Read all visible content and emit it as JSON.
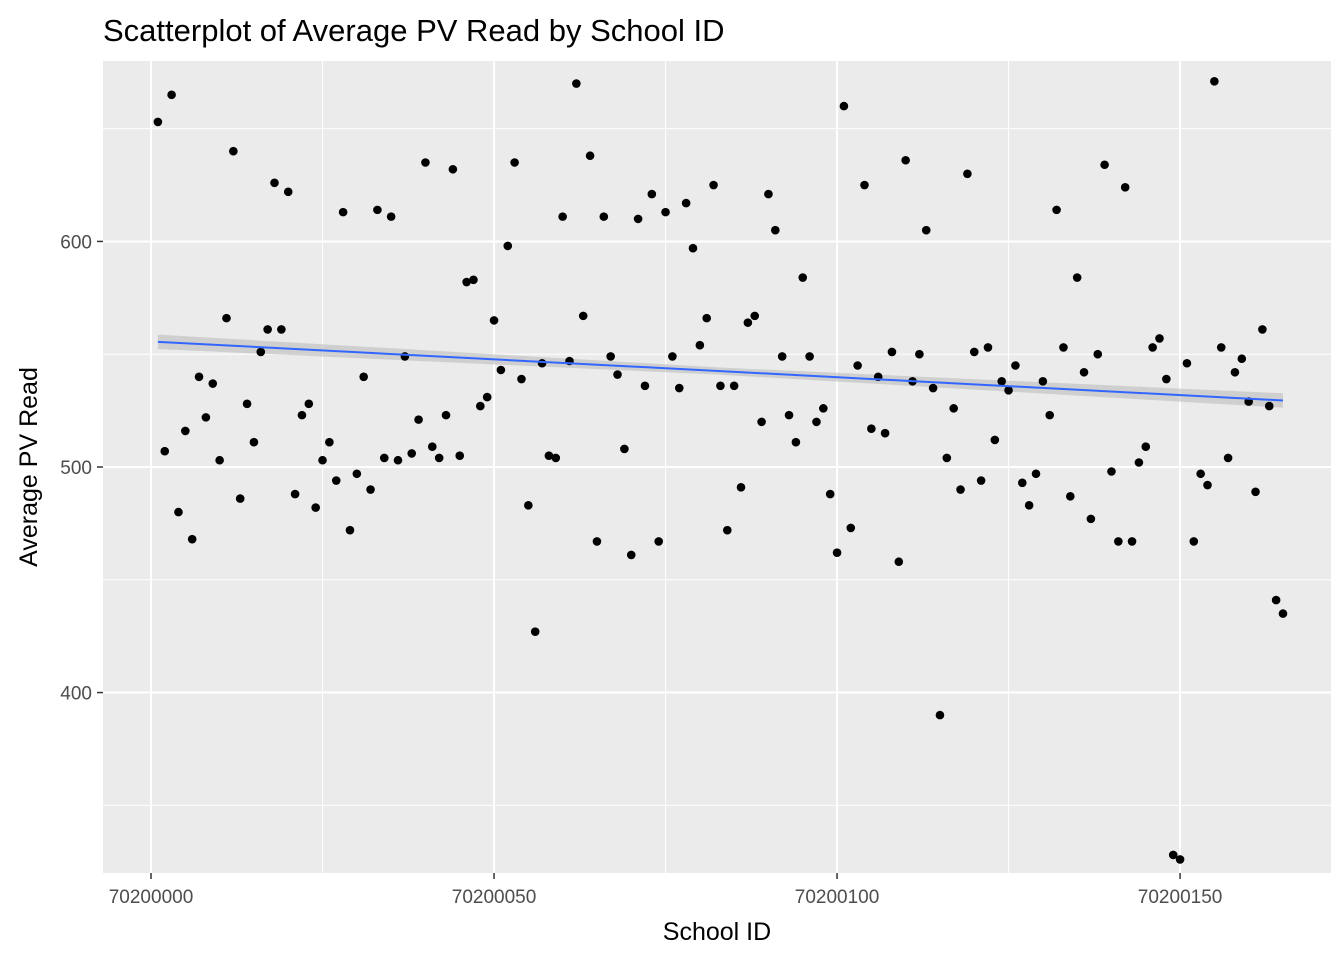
{
  "chart_data": {
    "type": "scatter",
    "title": "Scatterplot of Average PV Read by School ID",
    "xlabel": "School ID",
    "ylabel": "Average PV Read",
    "xlim": [
      70199993,
      70200172
    ],
    "ylim": [
      320,
      680
    ],
    "x_ticks": [
      70200000,
      70200050,
      70200100,
      70200150
    ],
    "x_tick_labels": [
      "70200000",
      "70200050",
      "70200100",
      "70200150"
    ],
    "y_ticks": [
      400,
      500,
      600
    ],
    "y_tick_labels": [
      "400",
      "500",
      "600"
    ],
    "grid": true,
    "panel_background": "#ebebeb",
    "point_color": "#000000",
    "trend_line": {
      "method": "lm",
      "color": "#3366ff",
      "ribbon_color": "#bdbdbd",
      "x": [
        70200001,
        70200165
      ],
      "y": [
        555.5,
        529.5
      ],
      "se_halfwidth": [
        3.2,
        3.2
      ]
    },
    "series": [
      {
        "x": [
          70200001,
          70200002,
          70200003,
          70200004,
          70200005,
          70200006,
          70200007,
          70200008,
          70200009,
          70200010,
          70200011,
          70200012,
          70200013,
          70200014,
          70200015,
          70200016,
          70200017,
          70200018,
          70200019,
          70200020,
          70200021,
          70200022,
          70200023,
          70200024,
          70200025,
          70200026,
          70200027,
          70200028,
          70200029,
          70200030,
          70200031,
          70200032,
          70200033,
          70200034,
          70200035,
          70200036,
          70200037,
          70200038,
          70200039,
          70200040,
          70200041,
          70200042,
          70200043,
          70200044,
          70200045,
          70200046,
          70200047,
          70200048,
          70200049,
          70200050,
          70200051,
          70200052,
          70200053,
          70200054,
          70200055,
          70200056,
          70200057,
          70200058,
          70200059,
          70200060,
          70200061,
          70200062,
          70200063,
          70200064,
          70200065,
          70200066,
          70200067,
          70200068,
          70200069,
          70200070,
          70200071,
          70200072,
          70200073,
          70200074,
          70200075,
          70200076,
          70200077,
          70200078,
          70200079,
          70200080,
          70200081,
          70200082,
          70200083,
          70200084,
          70200085,
          70200086,
          70200087,
          70200088,
          70200089,
          70200090,
          70200091,
          70200092,
          70200093,
          70200094,
          70200095,
          70200096,
          70200097,
          70200098,
          70200099,
          70200100,
          70200101,
          70200102,
          70200103,
          70200104,
          70200105,
          70200106,
          70200107,
          70200108,
          70200109,
          70200110,
          70200111,
          70200112,
          70200113,
          70200114,
          70200115,
          70200116,
          70200117,
          70200118,
          70200119,
          70200120,
          70200121,
          70200122,
          70200123,
          70200124,
          70200125,
          70200126,
          70200127,
          70200128,
          70200129,
          70200130,
          70200131,
          70200132,
          70200133,
          70200134,
          70200135,
          70200136,
          70200137,
          70200138,
          70200139,
          70200140,
          70200141,
          70200142,
          70200143,
          70200144,
          70200145,
          70200146,
          70200147,
          70200148,
          70200149,
          70200150,
          70200151,
          70200152,
          70200153,
          70200154,
          70200155,
          70200156,
          70200157,
          70200158,
          70200159,
          70200160,
          70200161,
          70200162,
          70200163,
          70200164,
          70200165
        ],
        "y": [
          653,
          507,
          665,
          480,
          516,
          468,
          540,
          522,
          537,
          503,
          566,
          640,
          486,
          528,
          511,
          551,
          561,
          626,
          561,
          622,
          488,
          523,
          528,
          482,
          503,
          511,
          494,
          613,
          472,
          497,
          540,
          490,
          614,
          504,
          611,
          503,
          549,
          506,
          521,
          635,
          509,
          504,
          523,
          632,
          505,
          582,
          583,
          527,
          531,
          565,
          543,
          598,
          635,
          539,
          483,
          427,
          546,
          505,
          504,
          611,
          547,
          670,
          567,
          638,
          467,
          611,
          549,
          541,
          508,
          461,
          610,
          536,
          621,
          467,
          613,
          549,
          535,
          617,
          597,
          554,
          566,
          625,
          536,
          472,
          536,
          491,
          564,
          567,
          520,
          621,
          605,
          549,
          523,
          511,
          584,
          549,
          520,
          526,
          488,
          462,
          660,
          473,
          545,
          625,
          517,
          540,
          515,
          551,
          458,
          636,
          538,
          550,
          605,
          535,
          390,
          504,
          526,
          490,
          630,
          551,
          494,
          553,
          512,
          538,
          534,
          545,
          493,
          483,
          497,
          538,
          523,
          614,
          553,
          487,
          584,
          542,
          477,
          550,
          634,
          498,
          467,
          624,
          467,
          502,
          509,
          553,
          557,
          539,
          328,
          326,
          546,
          467,
          497,
          492,
          671,
          553,
          504,
          542,
          548,
          529,
          489,
          561,
          527,
          441,
          435
        ]
      }
    ]
  }
}
